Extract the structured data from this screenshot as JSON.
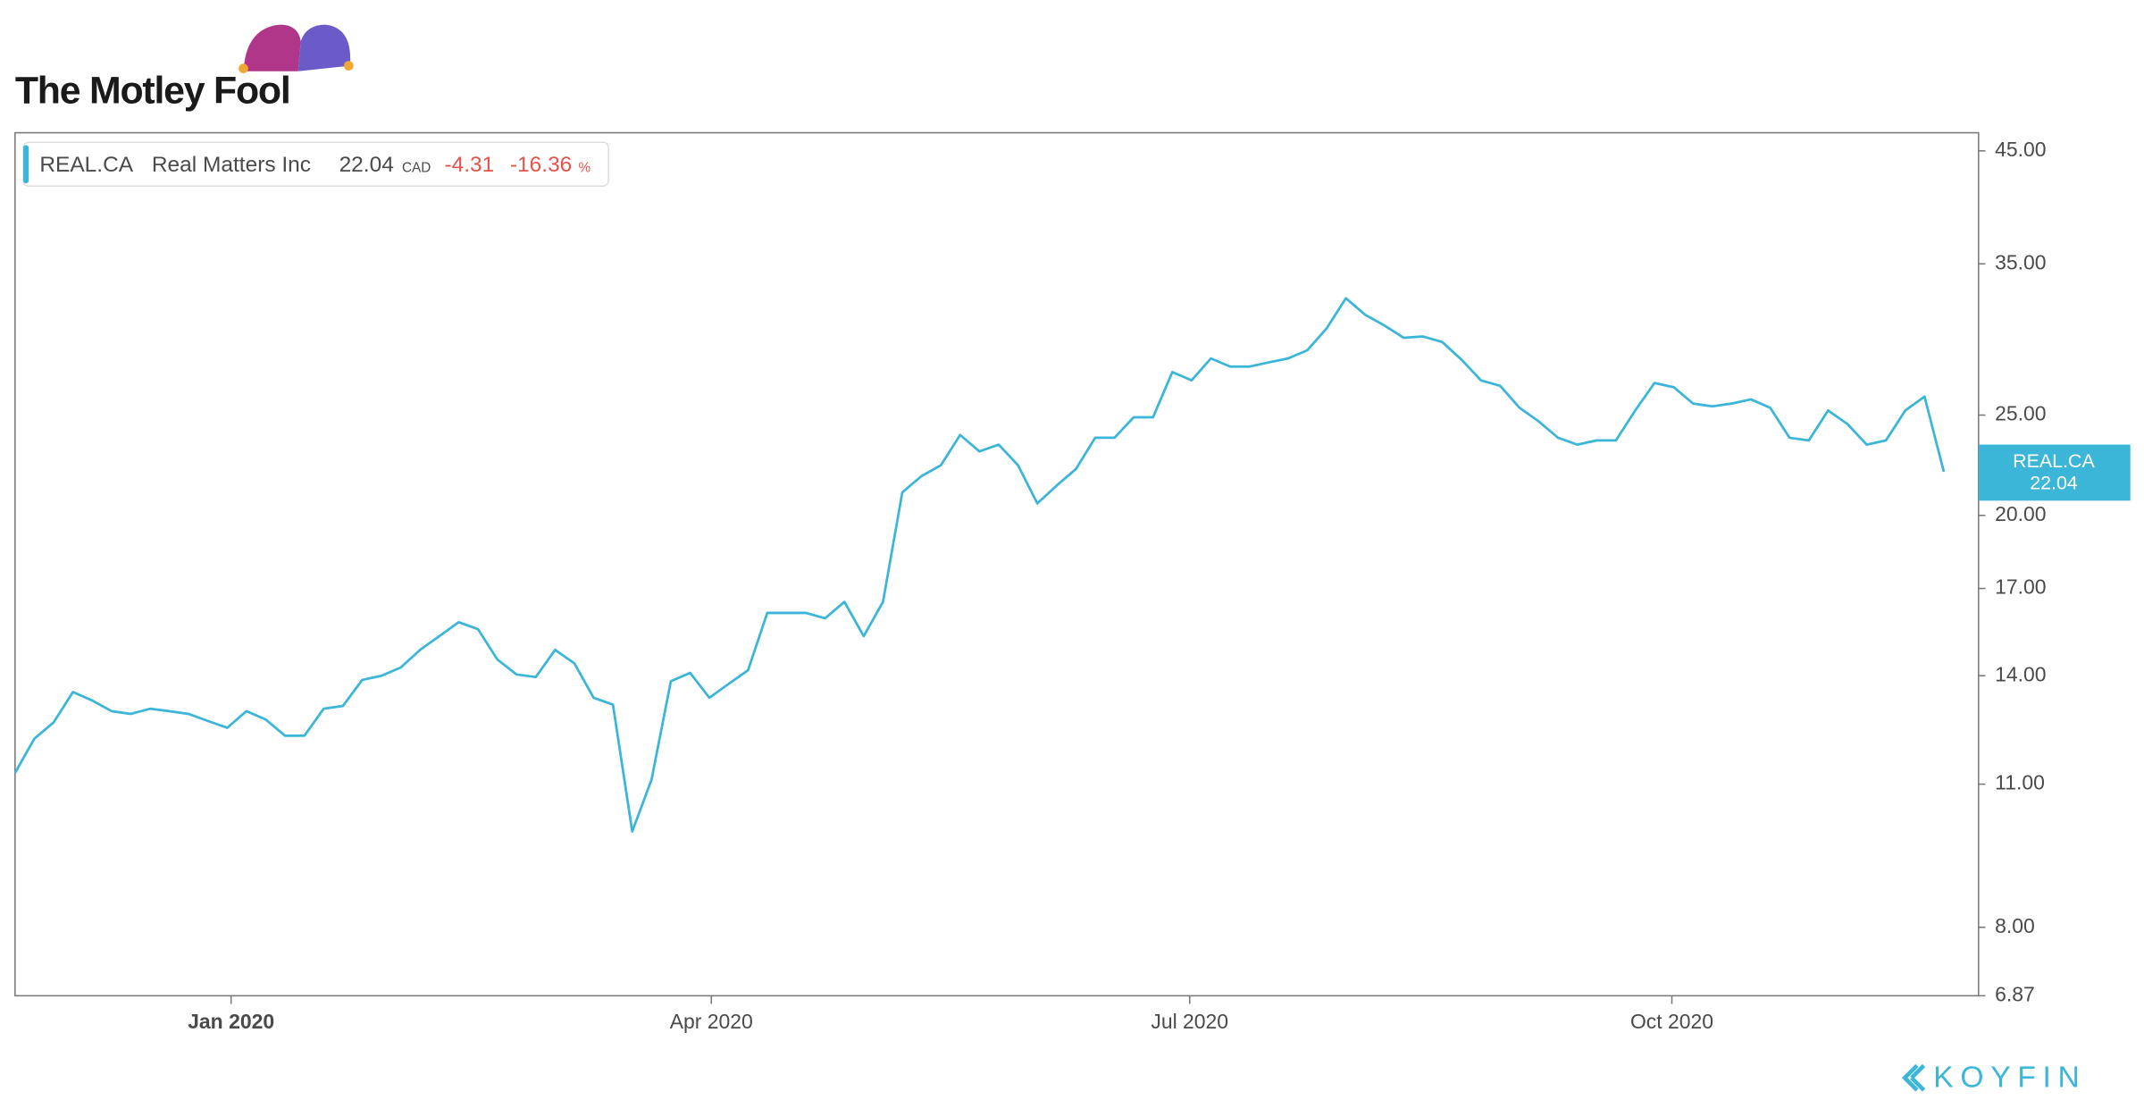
{
  "brand": "The Motley Fool",
  "source": "KOYFIN",
  "chart_data": {
    "type": "line",
    "log_scale": true,
    "ticker": "REAL.CA",
    "company": "Real Matters Inc",
    "last_price": "22.04",
    "currency": "CAD",
    "change": "-4.31",
    "change_percent": "-16.36",
    "percent_sign": "%",
    "series": [
      {
        "name": "REAL.CA",
        "color": "#3bb5d8",
        "values": [
          11.28,
          12.17,
          12.62,
          13.5,
          13.25,
          12.94,
          12.86,
          13.01,
          12.94,
          12.86,
          12.66,
          12.47,
          12.94,
          12.7,
          12.25,
          12.25,
          13.01,
          13.09,
          13.87,
          14.0,
          14.26,
          14.83,
          15.29,
          15.77,
          15.53,
          14.52,
          14.04,
          13.96,
          14.83,
          14.39,
          13.33,
          13.13,
          9.9,
          11.11,
          13.83,
          14.09,
          13.33,
          13.75,
          14.17,
          16.1,
          16.1,
          16.1,
          15.91,
          16.5,
          15.29,
          16.5,
          21.05,
          21.83,
          22.36,
          23.92,
          23.06,
          23.41,
          22.36,
          20.54,
          21.37,
          22.17,
          23.77,
          23.77,
          24.88,
          24.88,
          27.51,
          27.01,
          28.36,
          27.85,
          27.85,
          28.11,
          28.36,
          28.88,
          30.32,
          32.42,
          31.25,
          30.51,
          29.69,
          29.78,
          29.41,
          28.27,
          27.01,
          26.68,
          25.41,
          24.65,
          23.77,
          23.41,
          23.63,
          23.63,
          25.26,
          26.85,
          26.6,
          25.65,
          25.49,
          25.65,
          25.89,
          25.41,
          23.77,
          23.63,
          25.26,
          24.51,
          23.41,
          23.63,
          25.26,
          26.05,
          22.04
        ]
      }
    ],
    "xlim": [
      0,
      101.8
    ],
    "xticks": [
      {
        "value": 11.2,
        "label": "Jan 2020"
      },
      {
        "value": 36.1,
        "label": "Apr 2020"
      },
      {
        "value": 60.9,
        "label": "Jul 2020"
      },
      {
        "value": 85.9,
        "label": "Oct 2020"
      }
    ],
    "ylim": [
      6.87,
      46.85
    ],
    "yticks": [
      {
        "value": 6.87,
        "label": "6.87"
      },
      {
        "value": 8,
        "label": "8.00"
      },
      {
        "value": 11,
        "label": "11.00"
      },
      {
        "value": 14,
        "label": "14.00"
      },
      {
        "value": 17,
        "label": "17.00"
      },
      {
        "value": 20,
        "label": "20.00"
      },
      {
        "value": 25,
        "label": "25.00"
      },
      {
        "value": 35,
        "label": "35.00"
      },
      {
        "value": 45,
        "label": "45.00"
      }
    ]
  }
}
